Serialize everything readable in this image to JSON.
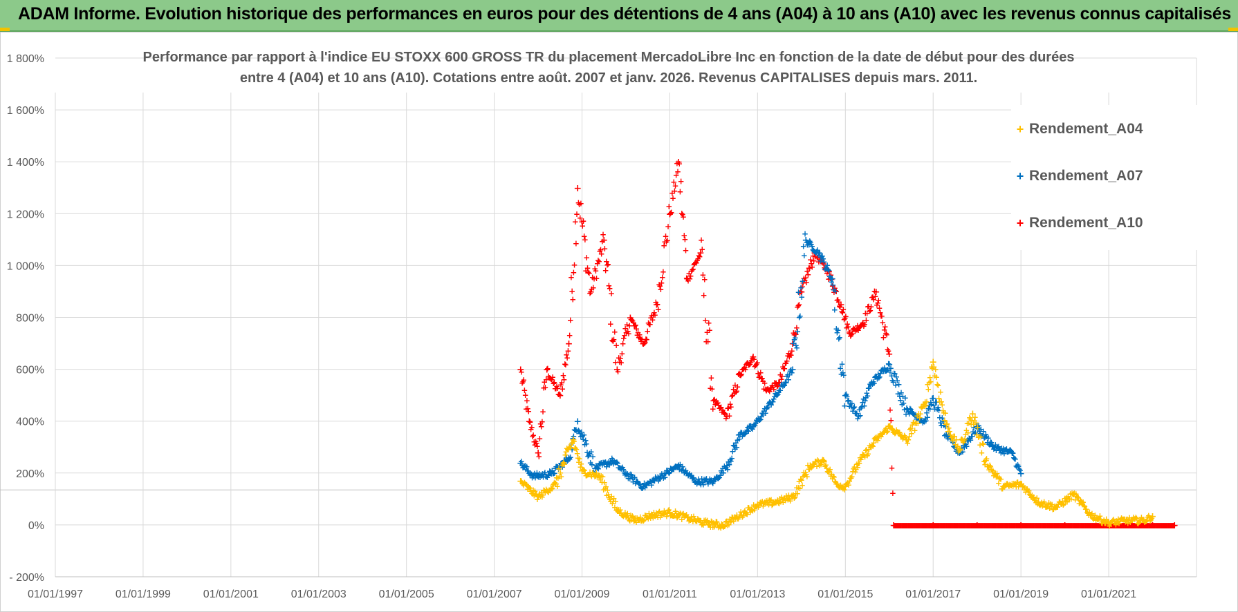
{
  "header": {
    "banner_title": "ADAM Informe. Evolution historique des performances en euros pour des détentions de 4 ans (A04) à 10 ans (A10) avec les revenus connus capitalisés"
  },
  "colors": {
    "A04": "#ffc000",
    "A07": "#0070c0",
    "A10": "#ff0000",
    "banner": "#8cc98a"
  },
  "chart_data": {
    "type": "scatter",
    "title_line1": "Performance par rapport à l'indice EU STOXX 600 GROSS TR  du placement MercadoLibre Inc en fonction de la date de début pour des durées",
    "title_line2": "entre 4 (A04) et 10 ans (A10).  Cotations entre août. 2007 et janv. 2026. Revenus CAPITALISES depuis mars. 2011.",
    "xlabel": "",
    "ylabel": "",
    "x_range": [
      "01/01/1997",
      "01/01/2023"
    ],
    "x_ticks": [
      "01/01/1997",
      "01/01/1999",
      "01/01/2001",
      "01/01/2003",
      "01/01/2005",
      "01/01/2007",
      "01/01/2009",
      "01/01/2011",
      "01/01/2013",
      "01/01/2015",
      "01/01/2017",
      "01/01/2019",
      "01/01/2021"
    ],
    "ylim": [
      -200,
      1800
    ],
    "y_ticks": [
      -200,
      0,
      200,
      400,
      600,
      800,
      1000,
      1200,
      1400,
      1600,
      1800
    ],
    "y_tick_labels": [
      "- 200%",
      "0%",
      "200%",
      "400%",
      "600%",
      "800%",
      "1 000%",
      "1 200%",
      "1 400%",
      "1 600%",
      "1 800%"
    ],
    "legend": [
      "Rendement_A04",
      "Rendement_A07",
      "Rendement_A10"
    ],
    "legend_position": "top-right",
    "series": [
      {
        "name": "Rendement_A04",
        "points": [
          [
            2007.6,
            170
          ],
          [
            2008.0,
            110
          ],
          [
            2008.4,
            160
          ],
          [
            2008.8,
            330
          ],
          [
            2009.0,
            210
          ],
          [
            2009.4,
            190
          ],
          [
            2009.8,
            60
          ],
          [
            2010.2,
            20
          ],
          [
            2010.6,
            40
          ],
          [
            2011.0,
            50
          ],
          [
            2011.4,
            30
          ],
          [
            2011.8,
            10
          ],
          [
            2012.2,
            0
          ],
          [
            2012.6,
            40
          ],
          [
            2013.0,
            80
          ],
          [
            2013.4,
            90
          ],
          [
            2013.8,
            110
          ],
          [
            2014.2,
            230
          ],
          [
            2014.5,
            250
          ],
          [
            2014.8,
            160
          ],
          [
            2015.0,
            150
          ],
          [
            2015.3,
            240
          ],
          [
            2015.7,
            330
          ],
          [
            2016.0,
            380
          ],
          [
            2016.4,
            330
          ],
          [
            2016.8,
            460
          ],
          [
            2017.0,
            630
          ],
          [
            2017.3,
            390
          ],
          [
            2017.6,
            290
          ],
          [
            2017.9,
            430
          ],
          [
            2018.2,
            250
          ],
          [
            2018.6,
            150
          ],
          [
            2019.0,
            160
          ],
          [
            2019.4,
            90
          ],
          [
            2019.8,
            70
          ],
          [
            2020.2,
            120
          ],
          [
            2020.6,
            40
          ],
          [
            2021.0,
            10
          ],
          [
            2021.4,
            20
          ],
          [
            2021.8,
            20
          ],
          [
            2022.0,
            35
          ]
        ]
      },
      {
        "name": "Rendement_A07",
        "points": [
          [
            2007.6,
            240
          ],
          [
            2007.9,
            190
          ],
          [
            2008.3,
            200
          ],
          [
            2008.7,
            260
          ],
          [
            2008.9,
            400
          ],
          [
            2009.3,
            220
          ],
          [
            2009.7,
            250
          ],
          [
            2010.0,
            200
          ],
          [
            2010.4,
            150
          ],
          [
            2010.8,
            190
          ],
          [
            2011.2,
            230
          ],
          [
            2011.6,
            170
          ],
          [
            2012.0,
            170
          ],
          [
            2012.3,
            230
          ],
          [
            2012.6,
            350
          ],
          [
            2012.9,
            380
          ],
          [
            2013.2,
            450
          ],
          [
            2013.5,
            520
          ],
          [
            2013.8,
            600
          ],
          [
            2014.1,
            1100
          ],
          [
            2014.4,
            1050
          ],
          [
            2014.7,
            950
          ],
          [
            2015.0,
            500
          ],
          [
            2015.3,
            420
          ],
          [
            2015.6,
            550
          ],
          [
            2016.0,
            620
          ],
          [
            2016.4,
            450
          ],
          [
            2016.8,
            400
          ],
          [
            2017.0,
            490
          ],
          [
            2017.3,
            350
          ],
          [
            2017.6,
            280
          ],
          [
            2018.0,
            380
          ],
          [
            2018.4,
            300
          ],
          [
            2018.8,
            280
          ],
          [
            2019.0,
            200
          ]
        ]
      },
      {
        "name": "Rendement_A10",
        "points": [
          [
            2007.6,
            600
          ],
          [
            2007.8,
            400
          ],
          [
            2008.0,
            280
          ],
          [
            2008.2,
            600
          ],
          [
            2008.5,
            500
          ],
          [
            2008.7,
            700
          ],
          [
            2008.9,
            1300
          ],
          [
            2009.2,
            900
          ],
          [
            2009.5,
            1100
          ],
          [
            2009.8,
            600
          ],
          [
            2010.1,
            800
          ],
          [
            2010.4,
            700
          ],
          [
            2010.7,
            850
          ],
          [
            2011.0,
            1200
          ],
          [
            2011.2,
            1400
          ],
          [
            2011.4,
            950
          ],
          [
            2011.7,
            1050
          ],
          [
            2012.0,
            480
          ],
          [
            2012.3,
            420
          ],
          [
            2012.6,
            580
          ],
          [
            2012.9,
            650
          ],
          [
            2013.2,
            520
          ],
          [
            2013.5,
            550
          ],
          [
            2013.8,
            700
          ],
          [
            2014.0,
            900
          ],
          [
            2014.3,
            1050
          ],
          [
            2014.6,
            980
          ],
          [
            2014.9,
            850
          ],
          [
            2015.1,
            740
          ],
          [
            2015.4,
            780
          ],
          [
            2015.7,
            900
          ],
          [
            2016.0,
            660
          ],
          [
            2016.1,
            0
          ],
          [
            2017.0,
            0
          ],
          [
            2018.0,
            0
          ],
          [
            2019.0,
            0
          ],
          [
            2020.0,
            0
          ],
          [
            2021.0,
            0
          ],
          [
            2022.0,
            0
          ],
          [
            2022.5,
            0
          ]
        ]
      }
    ]
  }
}
